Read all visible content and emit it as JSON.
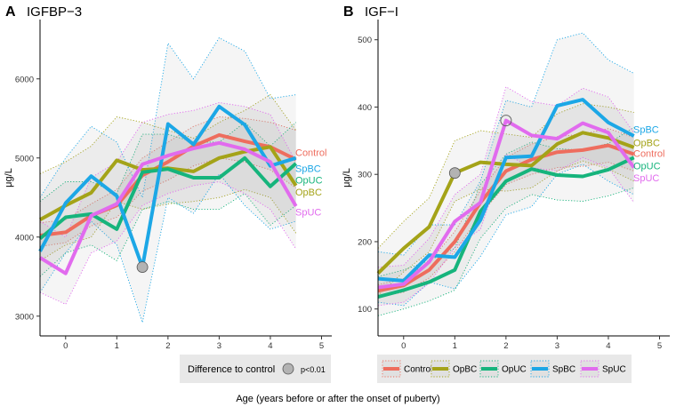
{
  "figure": {
    "x_title": "Age (years before or after the onset of puberty)",
    "y_title": "μg/L",
    "significance_legend": {
      "title": "Difference to control",
      "label": "p<0.01"
    }
  },
  "colors": {
    "Control": "#EE6D5E",
    "OpBC": "#A4A318",
    "OpUC": "#16B47C",
    "SpBC": "#1CA7E6",
    "SpUC": "#E16BEE"
  },
  "legend_groups": [
    "Control",
    "OpBC",
    "OpUC",
    "SpBC",
    "SpUC"
  ],
  "chart_data": [
    {
      "type": "line",
      "panel": "A",
      "title": "IGFBP−3",
      "xlabel": "Age (years before or after the onset of puberty)",
      "ylabel": "μg/L",
      "xlim": [
        -0.5,
        5.2
      ],
      "ylim": [
        2750,
        6750
      ],
      "xticks": [
        0,
        1,
        2,
        3,
        4,
        5
      ],
      "yticks": [
        3000,
        4000,
        5000,
        6000
      ],
      "x": [
        -0.5,
        0,
        0.5,
        1,
        1.5,
        2,
        2.5,
        3,
        3.5,
        4,
        4.5
      ],
      "series": [
        {
          "name": "Control",
          "values": [
            4020,
            4060,
            4270,
            4400,
            4780,
            4950,
            5150,
            5290,
            5210,
            5140,
            4980
          ],
          "band_lo": [
            3880,
            3930,
            4140,
            4250,
            4580,
            4720,
            4900,
            5000,
            4950,
            4850,
            4620
          ],
          "band_hi": [
            4180,
            4220,
            4420,
            4600,
            5000,
            5200,
            5400,
            5520,
            5500,
            5450,
            5350
          ]
        },
        {
          "name": "OpBC",
          "values": [
            4220,
            4400,
            4560,
            4970,
            4850,
            4870,
            4830,
            5000,
            5080,
            5140,
            4650
          ],
          "band_lo": [
            3700,
            3900,
            4000,
            4450,
            4350,
            4420,
            4450,
            4500,
            4600,
            4500,
            4050
          ],
          "band_hi": [
            4800,
            4950,
            5150,
            5520,
            5450,
            5350,
            5250,
            5450,
            5600,
            5800,
            5350
          ]
        },
        {
          "name": "OpUC",
          "values": [
            3980,
            4250,
            4290,
            4100,
            4820,
            4860,
            4750,
            4750,
            5000,
            4640,
            4930
          ],
          "band_lo": [
            3500,
            3800,
            3900,
            3700,
            4350,
            4450,
            4350,
            4350,
            4550,
            4150,
            4400
          ],
          "band_hi": [
            4450,
            4700,
            4700,
            4550,
            5300,
            5300,
            5200,
            5200,
            5450,
            5150,
            5450
          ]
        },
        {
          "name": "SpBC",
          "values": [
            3820,
            4430,
            4770,
            4520,
            3620,
            5430,
            5170,
            5650,
            5420,
            4900,
            5000
          ],
          "band_lo": [
            3300,
            3800,
            4200,
            3900,
            2920,
            4500,
            4300,
            4800,
            4400,
            4100,
            4200
          ],
          "band_hi": [
            4500,
            5000,
            5400,
            5200,
            4500,
            6450,
            6000,
            6520,
            6350,
            5750,
            5800
          ]
        },
        {
          "name": "SpUC",
          "values": [
            3740,
            3540,
            4270,
            4420,
            4920,
            5030,
            5120,
            5190,
            5110,
            4950,
            4390
          ],
          "band_lo": [
            3300,
            3150,
            3800,
            3950,
            4400,
            4550,
            4650,
            4700,
            4550,
            4350,
            3850
          ],
          "band_hi": [
            4200,
            4000,
            4750,
            4950,
            5450,
            5550,
            5600,
            5700,
            5650,
            5550,
            4950
          ]
        }
      ],
      "end_labels": [
        {
          "name": "Control",
          "text": "Control",
          "y": 5070
        },
        {
          "name": "SpBC",
          "text": "SpBC",
          "y": 4870
        },
        {
          "name": "OpUC",
          "text": "OpUC",
          "y": 4720
        },
        {
          "name": "OpBC",
          "text": "OpBC",
          "y": 4570
        },
        {
          "name": "SpUC",
          "text": "SpUC",
          "y": 4320
        }
      ],
      "significant_points": [
        {
          "series": "SpBC",
          "x": 1.5,
          "y": 3620,
          "style": "filled"
        }
      ]
    },
    {
      "type": "line",
      "panel": "B",
      "title": "IGF−I",
      "xlabel": "Age (years before or after the onset of puberty)",
      "ylabel": "μg/L",
      "xlim": [
        -0.5,
        5.2
      ],
      "ylim": [
        60,
        530
      ],
      "xticks": [
        0,
        1,
        2,
        3,
        4,
        5
      ],
      "yticks": [
        100,
        200,
        300,
        400,
        500
      ],
      "x": [
        -0.5,
        0,
        0.5,
        1,
        1.5,
        2,
        2.5,
        3,
        3.5,
        4,
        4.5
      ],
      "series": [
        {
          "name": "Control",
          "values": [
            127,
            135,
            158,
            200,
            258,
            305,
            322,
            333,
            336,
            343,
            330
          ],
          "band_lo": [
            118,
            125,
            146,
            185,
            240,
            285,
            300,
            310,
            312,
            318,
            305
          ],
          "band_hi": [
            136,
            145,
            170,
            215,
            276,
            325,
            345,
            356,
            360,
            368,
            355
          ]
        },
        {
          "name": "OpBC",
          "values": [
            153,
            190,
            222,
            302,
            318,
            315,
            313,
            345,
            362,
            354,
            340
          ],
          "band_lo": [
            120,
            155,
            185,
            260,
            278,
            275,
            280,
            305,
            320,
            308,
            290
          ],
          "band_hi": [
            190,
            230,
            265,
            350,
            365,
            360,
            355,
            390,
            405,
            400,
            392
          ]
        },
        {
          "name": "OpUC",
          "values": [
            118,
            128,
            140,
            158,
            245,
            290,
            308,
            299,
            297,
            307,
            325
          ],
          "band_lo": [
            90,
            100,
            112,
            128,
            205,
            250,
            270,
            262,
            260,
            268,
            280
          ],
          "band_hi": [
            148,
            158,
            172,
            190,
            285,
            330,
            348,
            338,
            336,
            346,
            370
          ]
        },
        {
          "name": "SpBC",
          "values": [
            145,
            142,
            180,
            177,
            232,
            325,
            327,
            402,
            411,
            377,
            357
          ],
          "band_lo": [
            110,
            105,
            140,
            130,
            178,
            240,
            252,
            300,
            315,
            290,
            270
          ],
          "band_hi": [
            185,
            180,
            225,
            225,
            290,
            410,
            400,
            500,
            510,
            470,
            450
          ]
        },
        {
          "name": "SpUC",
          "values": [
            132,
            137,
            170,
            230,
            258,
            380,
            358,
            353,
            376,
            362,
            310
          ],
          "band_lo": [
            105,
            110,
            138,
            192,
            218,
            330,
            310,
            305,
            325,
            310,
            258
          ],
          "band_hi": [
            162,
            165,
            205,
            270,
            300,
            430,
            408,
            402,
            428,
            415,
            362
          ]
        }
      ],
      "end_labels": [
        {
          "name": "SpBC",
          "text": "SpBC",
          "y": 367
        },
        {
          "name": "OpBC",
          "text": "OpBC",
          "y": 347
        },
        {
          "name": "Control",
          "text": "Control",
          "y": 331
        },
        {
          "name": "OpUC",
          "text": "OpUC",
          "y": 313
        },
        {
          "name": "SpUC",
          "text": "SpUC",
          "y": 295
        }
      ],
      "significant_points": [
        {
          "series": "OpBC",
          "x": 1,
          "y": 302,
          "style": "filled"
        },
        {
          "series": "SpUC",
          "x": 2,
          "y": 380,
          "style": "open"
        }
      ]
    }
  ]
}
